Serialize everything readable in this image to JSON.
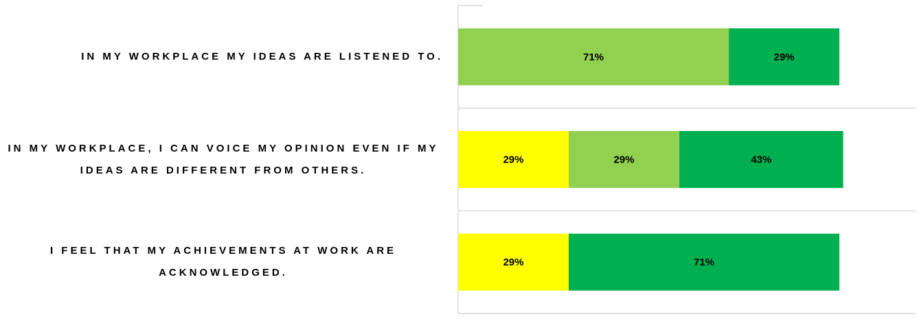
{
  "chart_data": {
    "type": "stacked-bar-horizontal",
    "categories": [
      "IN MY WORKPLACE MY IDEAS ARE LISTENED TO.",
      "IN MY WORKPLACE, I CAN VOICE MY OPINION EVEN IF MY IDEAS ARE DIFFERENT FROM OTHERS.",
      "I FEEL THAT MY ACHIEVEMENTS AT WORK ARE ACKNOWLEDGED."
    ],
    "series": [
      {
        "color": "#ffff00",
        "values": [
          null,
          29,
          29
        ],
        "value_labels": [
          null,
          "29%",
          "29%"
        ]
      },
      {
        "color": "#92d050",
        "values": [
          71,
          29,
          null
        ],
        "value_labels": [
          "71%",
          "29%",
          null
        ]
      },
      {
        "color": "#00b050",
        "values": [
          29,
          43,
          71
        ],
        "value_labels": [
          "29%",
          "43%",
          "71%"
        ]
      }
    ],
    "xlim": [
      0,
      120
    ]
  }
}
